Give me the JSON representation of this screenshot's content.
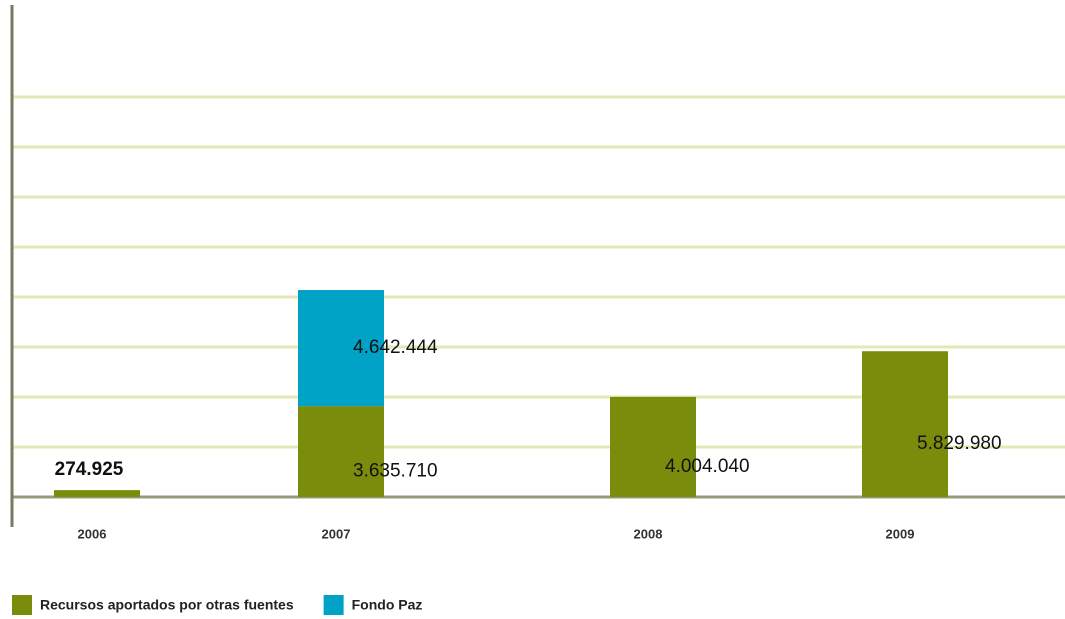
{
  "chart_data": {
    "type": "stacked_bar",
    "categories": [
      "2006",
      "2007",
      "2008",
      "2009"
    ],
    "series": [
      {
        "name": "Recursos aportados por otras fuentes",
        "color": "#7a8c0c",
        "values": [
          274925,
          3635710,
          4004040,
          5829980
        ],
        "value_labels": [
          "274.925",
          "3.635.710",
          "4.004.040",
          "5.829.980"
        ]
      },
      {
        "name": "Fondo Paz",
        "color": "#00a3c6",
        "values": [
          null,
          4642444,
          null,
          null
        ],
        "value_labels": [
          null,
          "4.642.444",
          null,
          null
        ]
      }
    ],
    "ylim": [
      0,
      18000000
    ],
    "yticks": [
      0,
      2000000,
      4000000,
      6000000,
      8000000,
      10000000,
      12000000,
      14000000,
      16000000
    ],
    "grid": true,
    "legend": "bottom-left"
  }
}
